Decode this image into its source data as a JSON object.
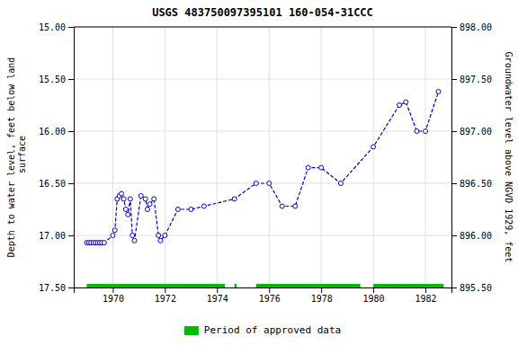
{
  "chart_data": {
    "type": "line",
    "title": "USGS 483750097395101 160-054-31CCC",
    "y_label": "Depth to water level, feet below land\n surface",
    "y2_label": "Groundwater level above NGVD 1929, feet",
    "x": [
      1969.0,
      1969.08,
      1969.16,
      1969.25,
      1969.33,
      1969.42,
      1969.5,
      1969.58,
      1969.67,
      1970.0,
      1970.08,
      1970.17,
      1970.25,
      1970.33,
      1970.42,
      1970.5,
      1970.58,
      1970.67,
      1970.75,
      1970.83,
      1971.08,
      1971.25,
      1971.33,
      1971.42,
      1971.58,
      1971.75,
      1971.83,
      1972.0,
      1972.5,
      1973.0,
      1973.5,
      1974.67,
      1975.5,
      1976.0,
      1976.5,
      1977.0,
      1977.5,
      1978.0,
      1978.75,
      1980.0,
      1981.0,
      1981.25,
      1981.67,
      1982.0,
      1982.5
    ],
    "series": [
      {
        "values": [
          17.07,
          17.07,
          17.07,
          17.07,
          17.07,
          17.07,
          17.07,
          17.07,
          17.07,
          17.0,
          16.95,
          16.65,
          16.62,
          16.6,
          16.65,
          16.75,
          16.8,
          16.65,
          17.0,
          17.05,
          16.62,
          16.65,
          16.75,
          16.7,
          16.65,
          17.0,
          17.05,
          17.0,
          16.75,
          16.75,
          16.72,
          16.65,
          16.5,
          16.5,
          16.72,
          16.72,
          16.35,
          16.35,
          16.5,
          16.15,
          15.75,
          15.72,
          16.0,
          16.0,
          15.62
        ],
        "color": "#0000cc",
        "marker": "circle",
        "line_style": "dashed"
      }
    ],
    "segments": {
      "name": "Period of approved data",
      "color": "#00bb00",
      "y": 17.5,
      "values": [
        [
          1969.0,
          1974.3
        ],
        [
          1974.67,
          1974.75
        ],
        [
          1975.5,
          1979.5
        ],
        [
          1980.0,
          1982.7
        ]
      ]
    },
    "xlim": [
      1968.5,
      1983.0
    ],
    "xticks": [
      1970,
      1972,
      1974,
      1976,
      1978,
      1980,
      1982
    ],
    "ylim": [
      17.5,
      15.0
    ],
    "yticks": [
      {
        "value": 15.0,
        "label": "15.00"
      },
      {
        "value": 15.5,
        "label": "15.50"
      },
      {
        "value": 16.0,
        "label": "16.00"
      },
      {
        "value": 16.5,
        "label": "16.50"
      },
      {
        "value": 17.0,
        "label": "17.00"
      },
      {
        "value": 17.5,
        "label": "17.50"
      }
    ],
    "y2lim": [
      895.5,
      898.0
    ],
    "y2ticks": [
      {
        "value": 895.5,
        "label": "895.50"
      },
      {
        "value": 896.0,
        "label": "896.00"
      },
      {
        "value": 896.5,
        "label": "896.50"
      },
      {
        "value": 897.0,
        "label": "897.00"
      },
      {
        "value": 897.5,
        "label": "897.50"
      },
      {
        "value": 898.0,
        "label": "898.00"
      }
    ],
    "grid": true,
    "legend": "bottom"
  }
}
